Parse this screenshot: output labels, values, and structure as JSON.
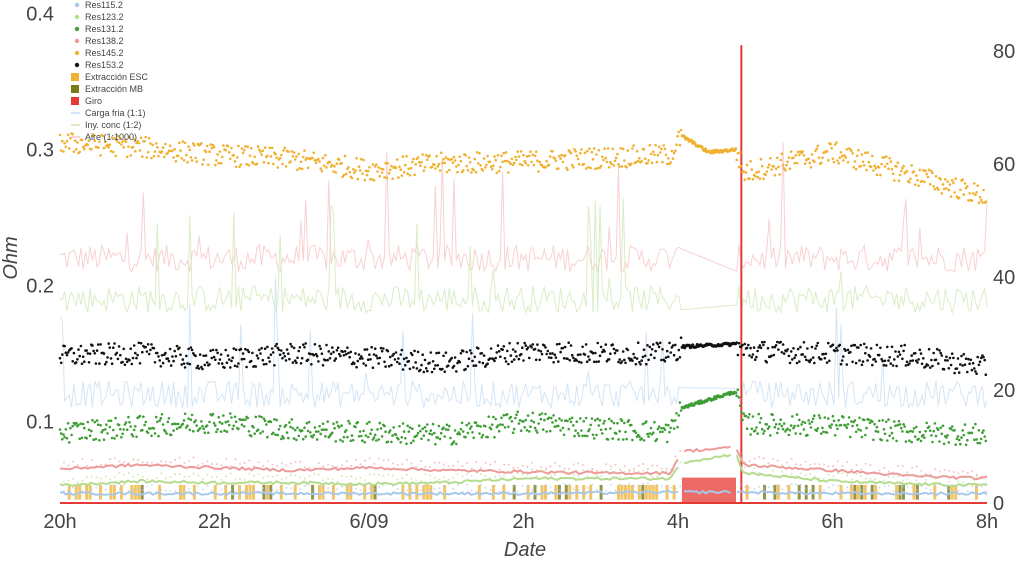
{
  "chart_data": {
    "type": "scatter",
    "xlabel": "Date",
    "ylabel": "Ohm",
    "x_ticks": [
      {
        "label": "20h",
        "hour": 0
      },
      {
        "label": "22h",
        "hour": 2
      },
      {
        "label": "6/09",
        "hour": 4
      },
      {
        "label": "2h",
        "hour": 6
      },
      {
        "label": "4h",
        "hour": 8
      },
      {
        "label": "6h",
        "hour": 10
      },
      {
        "label": "8h",
        "hour": 12
      }
    ],
    "xlim": [
      0,
      12
    ],
    "ylim": [
      0.04,
      0.41
    ],
    "y_ticks": [
      0.1,
      0.2,
      0.3,
      0.4
    ],
    "y_tick_labels": [
      "0.1",
      "0.2",
      "0.3",
      "0.4"
    ],
    "y2lim": [
      0,
      89
    ],
    "y2_ticks": [
      0,
      20,
      40,
      60,
      80
    ],
    "y2_tick_labels": [
      "0",
      "20",
      "40",
      "60",
      "80"
    ],
    "grid": false,
    "legend_position": "top-left",
    "legend": [
      {
        "label": "Res115.2",
        "kind": "dot",
        "color": "#a9c8e8"
      },
      {
        "label": "Res123.2",
        "kind": "dot",
        "color": "#b5dc8e"
      },
      {
        "label": "Res131.2",
        "kind": "dot",
        "color": "#3e9e35"
      },
      {
        "label": "Res138.2",
        "kind": "dot",
        "color": "#ef9a9a"
      },
      {
        "label": "Res145.2",
        "kind": "dot",
        "color": "#f0b030"
      },
      {
        "label": "Res153.2",
        "kind": "dot",
        "color": "#111111"
      },
      {
        "label": "Extracción ESC",
        "kind": "box",
        "color": "#f0b030"
      },
      {
        "label": "Extracción MB",
        "kind": "box",
        "color": "#7a7a1a"
      },
      {
        "label": "Giro",
        "kind": "box",
        "color": "#e53935"
      },
      {
        "label": "Carga fria (1:1)",
        "kind": "line",
        "color": "#c9def2"
      },
      {
        "label": "Iny. conc (1:2)",
        "kind": "line",
        "color": "#cfe8b8"
      },
      {
        "label": "Aire (1:1000)",
        "kind": "line",
        "color": "#f6c6c6"
      }
    ],
    "gap_start_hour": 8.05,
    "gap_end_hour": 8.75,
    "giro_spike_hour": 8.82,
    "giro_spike_y2": 81,
    "series": [
      {
        "name": "Res145.2",
        "color": "#f0b030",
        "style": "scatter",
        "x": [
          0,
          1,
          2,
          3,
          4,
          5,
          6,
          7,
          7.9,
          8.05,
          8.4,
          8.75,
          8.85,
          10,
          11,
          12
        ],
        "y": [
          0.305,
          0.302,
          0.296,
          0.293,
          0.285,
          0.29,
          0.291,
          0.294,
          0.296,
          0.31,
          0.298,
          0.3,
          0.283,
          0.298,
          0.282,
          0.265
        ]
      },
      {
        "name": "Res153.2",
        "color": "#111111",
        "style": "scatter",
        "x": [
          0,
          1,
          2,
          3,
          4,
          5,
          6,
          7,
          7.9,
          8.05,
          8.75,
          8.85,
          10,
          11,
          12
        ],
        "y": [
          0.148,
          0.15,
          0.145,
          0.15,
          0.147,
          0.143,
          0.152,
          0.15,
          0.15,
          0.155,
          0.157,
          0.152,
          0.15,
          0.148,
          0.14
        ]
      },
      {
        "name": "Res131.2",
        "color": "#3e9e35",
        "style": "scatter",
        "x": [
          0,
          1,
          2,
          3,
          4,
          5,
          6,
          7,
          7.9,
          8.05,
          8.75,
          8.85,
          10,
          11,
          12
        ],
        "y": [
          0.092,
          0.096,
          0.1,
          0.094,
          0.092,
          0.09,
          0.1,
          0.095,
          0.092,
          0.11,
          0.122,
          0.098,
          0.097,
          0.092,
          0.09
        ]
      },
      {
        "name": "Res138.2",
        "color": "#ef9a9a",
        "style": "line",
        "x": [
          0,
          1,
          2,
          3,
          4,
          5,
          6,
          7,
          7.9,
          8.05,
          8.75,
          8.85,
          10,
          11,
          12
        ],
        "y": [
          0.065,
          0.068,
          0.066,
          0.064,
          0.066,
          0.064,
          0.063,
          0.062,
          0.062,
          0.078,
          0.081,
          0.068,
          0.064,
          0.06,
          0.058
        ]
      },
      {
        "name": "Res123.2",
        "color": "#b5dc8e",
        "style": "line",
        "x": [
          0,
          1,
          2,
          3,
          4,
          5,
          6,
          7,
          7.9,
          8.05,
          8.75,
          8.85,
          10,
          11,
          12
        ],
        "y": [
          0.053,
          0.056,
          0.055,
          0.055,
          0.054,
          0.055,
          0.058,
          0.058,
          0.058,
          0.07,
          0.076,
          0.062,
          0.056,
          0.054,
          0.053
        ]
      },
      {
        "name": "Res115.2",
        "color": "#a9c8e8",
        "style": "line",
        "x": [
          0,
          2,
          4,
          6,
          8.05,
          8.75,
          10,
          12
        ],
        "y": [
          0.047,
          0.047,
          0.047,
          0.047,
          0.048,
          0.048,
          0.047,
          0.047
        ]
      }
    ],
    "background_series": [
      {
        "name": "Aire (1:1000)",
        "color": "#f6c6c6",
        "x": [
          0,
          12
        ],
        "y": [
          0.22,
          0.22
        ]
      },
      {
        "name": "Iny. conc (1:2)",
        "color": "#cfe8b8",
        "x": [
          0,
          12
        ],
        "y": [
          0.19,
          0.19
        ]
      },
      {
        "name": "Carga fria (1:1)",
        "color": "#c9def2",
        "x": [
          0,
          12
        ],
        "y": [
          0.12,
          0.12
        ]
      }
    ]
  }
}
